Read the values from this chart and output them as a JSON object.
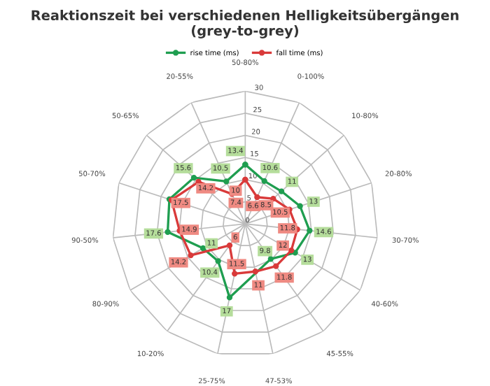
{
  "chart_data": {
    "type": "radar",
    "title": "Reaktionszeit bei verschiedenen Helligkeitsübergängen\n(grey-to-grey)",
    "categories": [
      "50-80%",
      "0-100%",
      "10-80%",
      "20-80%",
      "30-70%",
      "40-60%",
      "45-55%",
      "47-53%",
      "25-75%",
      "10-20%",
      "80-90%",
      "90-50%",
      "50-70%",
      "50-65%",
      "20-55%"
    ],
    "series": [
      {
        "name": "rise time (ms)",
        "color": "#1f9e50",
        "values": [
          13.4,
          10.6,
          11,
          13,
          14.6,
          13,
          9.8,
          null,
          17,
          10.4,
          11,
          17.6,
          18,
          15.6,
          10.5
        ],
        "value_labels": [
          "13.4",
          "10.6",
          "11",
          "13",
          "14.6",
          "13",
          "9.8",
          null,
          "17",
          "10.4",
          "11",
          "17.6",
          null,
          "15.6",
          "10.5"
        ]
      },
      {
        "name": "fall time (ms)",
        "color": "#d93a3a",
        "values": [
          10,
          6.6,
          8.5,
          10.5,
          11.8,
          12,
          11.8,
          11,
          11.5,
          6,
          14.2,
          14.9,
          17.5,
          14.2,
          7.4
        ],
        "value_labels": [
          "10",
          "6.6",
          "8.5",
          "10.5",
          "11.8",
          "12",
          "11.8",
          "11",
          "11.5",
          "6",
          "14.2",
          "14.9",
          "17.5",
          "14.2",
          "7.4"
        ]
      }
    ],
    "ylim": [
      0,
      30
    ],
    "yticks": [
      0,
      5,
      10,
      15,
      20,
      25,
      30
    ],
    "grid": true,
    "legend": "top",
    "marker": "circle",
    "line_style": "solid"
  }
}
